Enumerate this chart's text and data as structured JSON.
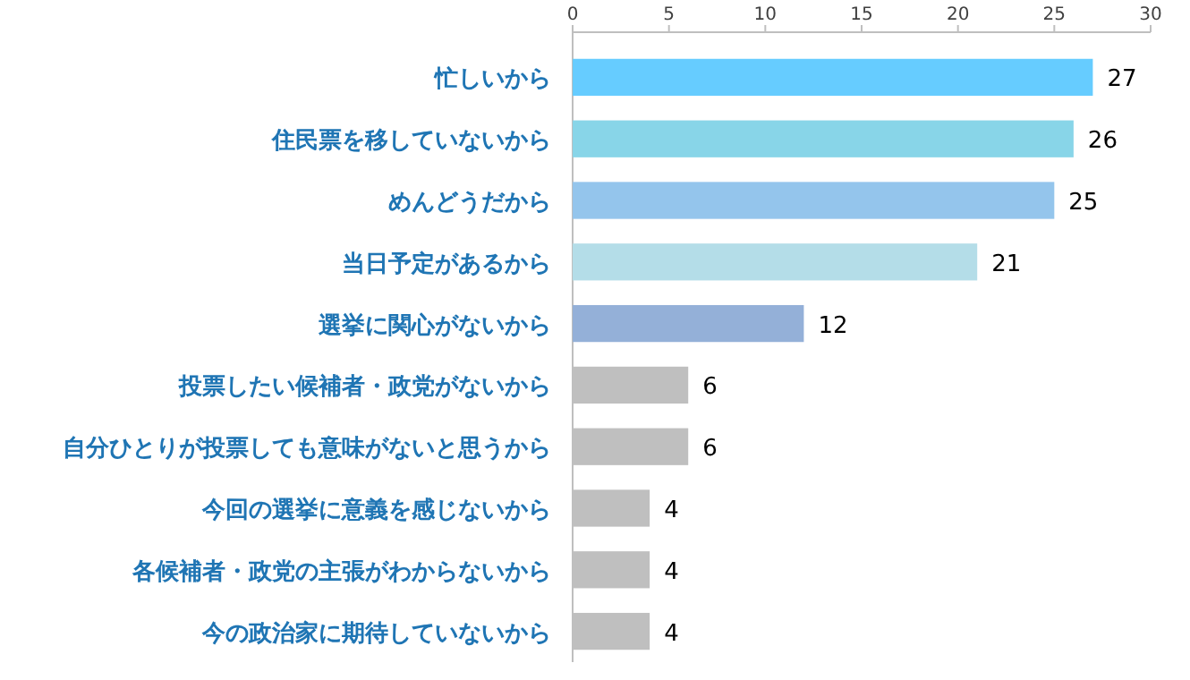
{
  "chart_data": {
    "type": "bar",
    "orientation": "horizontal",
    "categories": [
      "忙しいから",
      "住民票を移していないから",
      "めんどうだから",
      "当日予定があるから",
      "選挙に関心がないから",
      "投票したい候補者・政党がないから",
      "自分ひとりが投票しても意味がないと思うから",
      "今回の選挙に意義を感じないから",
      "各候補者・政党の主張がわからないから",
      "今の政治家に期待していないから"
    ],
    "values": [
      27,
      26,
      25,
      21,
      12,
      6,
      6,
      4,
      4,
      4
    ],
    "colors": [
      "#66ccff",
      "#88d5e8",
      "#94c5ec",
      "#b4dde8",
      "#94b0d8",
      "#bfbfbf",
      "#bfbfbf",
      "#bfbfbf",
      "#bfbfbf",
      "#bfbfbf"
    ],
    "xlim": [
      0,
      30
    ],
    "xticks": [
      0,
      5,
      10,
      15,
      20,
      25,
      30
    ],
    "data_labels": true,
    "grid": false
  }
}
